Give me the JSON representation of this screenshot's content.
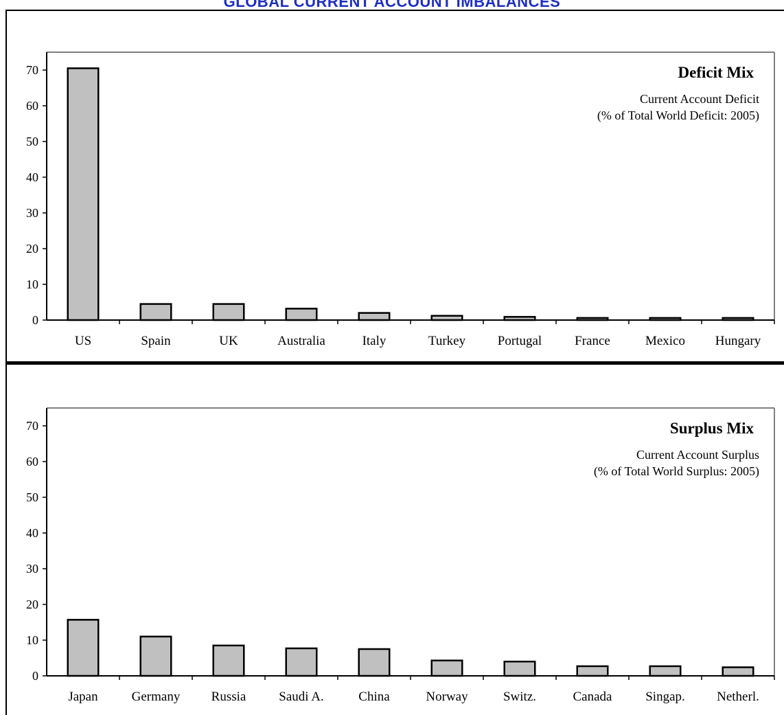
{
  "figure": {
    "title": "GLOBAL CURRENT ACCOUNT IMBALANCES"
  },
  "chart_data": [
    {
      "type": "bar",
      "title": "Deficit Mix",
      "subtitle_line1": "Current Account Deficit",
      "subtitle_line2": "(% of Total World Deficit: 2005)",
      "categories": [
        "US",
        "Spain",
        "UK",
        "Australia",
        "Italy",
        "Turkey",
        "Portugal",
        "France",
        "Mexico",
        "Hungary"
      ],
      "values": [
        70.5,
        4.5,
        4.5,
        3.2,
        2.0,
        1.2,
        0.9,
        0.6,
        0.6,
        0.6
      ],
      "ylim": [
        0,
        75
      ],
      "yticks": [
        0,
        10,
        20,
        30,
        40,
        50,
        60,
        70
      ],
      "bar_color": "#c0c0c0",
      "grid": false
    },
    {
      "type": "bar",
      "title": "Surplus Mix",
      "subtitle_line1": "Current Account Surplus",
      "subtitle_line2": "(% of Total World Surplus: 2005)",
      "categories": [
        "Japan",
        "Germany",
        "Russia",
        "Saudi A.",
        "China",
        "Norway",
        "Switz.",
        "Canada",
        "Singap.",
        "Netherl."
      ],
      "values": [
        15.7,
        11.0,
        8.5,
        7.7,
        7.5,
        4.3,
        4.0,
        2.7,
        2.7,
        2.4
      ],
      "ylim": [
        0,
        75
      ],
      "yticks": [
        0,
        10,
        20,
        30,
        40,
        50,
        60,
        70
      ],
      "bar_color": "#c0c0c0",
      "grid": false
    }
  ]
}
